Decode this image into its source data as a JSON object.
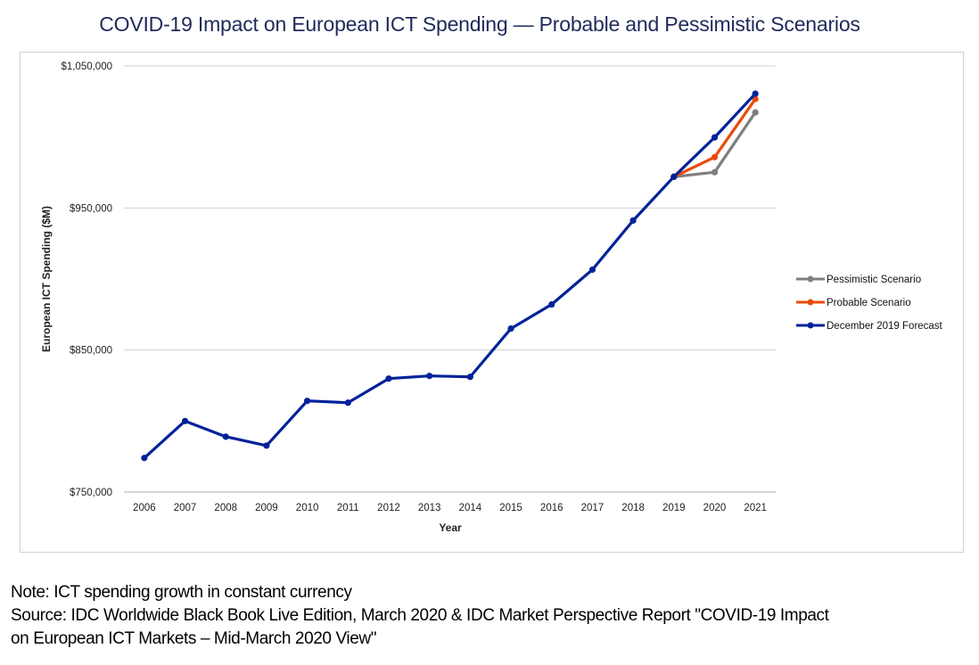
{
  "chart_data": {
    "type": "line",
    "title": "COVID-19 Impact on European ICT Spending — Probable and Pessimistic Scenarios",
    "xlabel": "Year",
    "ylabel": "European ICT Spending ($M)",
    "x": [
      "2006",
      "2007",
      "2008",
      "2009",
      "2010",
      "2011",
      "2012",
      "2013",
      "2014",
      "2015",
      "2016",
      "2017",
      "2018",
      "2019",
      "2020",
      "2021"
    ],
    "ylim": [
      750000,
      1050000
    ],
    "yticks": [
      750000,
      850000,
      950000,
      1050000
    ],
    "ytick_labels": [
      "$750,000",
      "$850,000",
      "$950,000",
      "$1,050,000"
    ],
    "grid": true,
    "legend_position": "right",
    "series": [
      {
        "name": "Pessimistic Scenario",
        "color": "#7f7f7f",
        "values": [
          null,
          null,
          null,
          null,
          null,
          null,
          null,
          null,
          null,
          null,
          null,
          null,
          null,
          972000,
          975200,
          1017300
        ]
      },
      {
        "name": "Probable Scenario",
        "color": "#e84c0c",
        "values": [
          null,
          null,
          null,
          null,
          null,
          null,
          null,
          null,
          null,
          null,
          null,
          null,
          null,
          972000,
          985800,
          1026700
        ]
      },
      {
        "name": "December 2019 Forecast",
        "color": "#002299",
        "values": [
          774000,
          800000,
          789000,
          782700,
          814200,
          812900,
          829900,
          831800,
          831100,
          865100,
          882100,
          906600,
          941200,
          972000,
          999700,
          1030500
        ]
      }
    ]
  },
  "notes": {
    "line1": "Note: ICT spending growth in constant currency",
    "line2": "Source: IDC Worldwide Black Book Live Edition, March 2020 & IDC Market Perspective Report \"COVID-19 Impact",
    "line3": "on European ICT Markets – Mid-March 2020 View\""
  }
}
